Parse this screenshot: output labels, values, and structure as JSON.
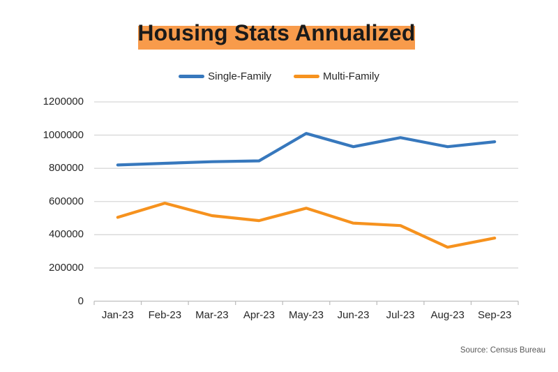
{
  "title": {
    "text": "Housing Stats Annualized",
    "highlight_color": "#F89B4B",
    "text_color": "#1A1A1A"
  },
  "legend": {
    "items": [
      {
        "label": "Single-Family",
        "color": "#3778BD"
      },
      {
        "label": "Multi-Family",
        "color": "#F6921E"
      }
    ]
  },
  "chart_data": {
    "type": "line",
    "title": "Housing Stats Annualized",
    "categories": [
      "Jan-23",
      "Feb-23",
      "Mar-23",
      "Apr-23",
      "May-23",
      "Jun-23",
      "Jul-23",
      "Aug-23",
      "Sep-23"
    ],
    "series": [
      {
        "name": "Single-Family",
        "color": "#3778BD",
        "values": [
          820000,
          830000,
          840000,
          845000,
          1010000,
          930000,
          985000,
          930000,
          960000
        ]
      },
      {
        "name": "Multi-Family",
        "color": "#F6921E",
        "values": [
          505000,
          590000,
          515000,
          485000,
          560000,
          470000,
          455000,
          325000,
          380000
        ]
      }
    ],
    "xlabel": "",
    "ylabel": "",
    "ylim": [
      0,
      1200000
    ],
    "ytick_step": 200000,
    "yticks": [
      0,
      200000,
      400000,
      600000,
      800000,
      1000000,
      1200000
    ],
    "grid": true,
    "legend_position": "top-center"
  },
  "footer": {
    "source": "Source: Census Bureau"
  },
  "colors": {
    "gridline": "#D8D8D8",
    "axis": "#BFBFBF",
    "tick": "#BFBFBF",
    "label": "#262626",
    "source": "#595959"
  }
}
